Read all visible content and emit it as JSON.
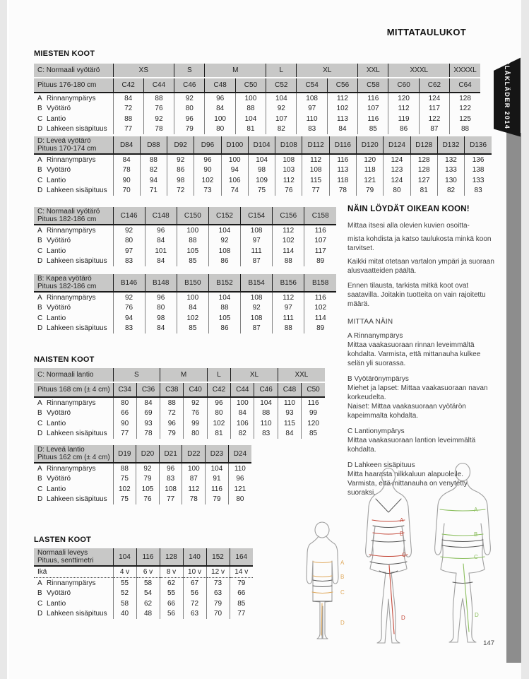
{
  "page": {
    "title": "MITTATAULUKOT",
    "side_tab": "BLÅKLÄDER 2014",
    "page_number": "147"
  },
  "sections": {
    "men_heading": "MIESTEN KOOT",
    "women_heading": "NAISTEN KOOT",
    "children_heading": "LASTEN KOOT"
  },
  "tables": [
    {
      "id": "men-c-normal",
      "label_lines": [
        "C: Normaali vyötärö",
        "Pituus 176-180 cm"
      ],
      "groups": [
        {
          "label": "XS",
          "span": 2
        },
        {
          "label": "S",
          "span": 1
        },
        {
          "label": "M",
          "span": 2
        },
        {
          "label": "L",
          "span": 1
        },
        {
          "label": "XL",
          "span": 2
        },
        {
          "label": "XXL",
          "span": 1
        },
        {
          "label": "XXXL",
          "span": 2
        },
        {
          "label": "XXXXL",
          "span": 1
        }
      ],
      "columns": [
        "C42",
        "C44",
        "C46",
        "C48",
        "C50",
        "C52",
        "C54",
        "C56",
        "C58",
        "C60",
        "C62",
        "C64"
      ],
      "rows": [
        {
          "key": "A",
          "label": "Rinnanympärys",
          "values": [
            84,
            88,
            92,
            96,
            100,
            104,
            108,
            112,
            116,
            120,
            124,
            128
          ]
        },
        {
          "key": "B",
          "label": "Vyötärö",
          "values": [
            72,
            76,
            80,
            84,
            88,
            92,
            97,
            102,
            107,
            112,
            117,
            122
          ]
        },
        {
          "key": "C",
          "label": "Lantio",
          "values": [
            88,
            92,
            96,
            100,
            104,
            107,
            110,
            113,
            116,
            119,
            122,
            125
          ]
        },
        {
          "key": "D",
          "label": "Lahkeen sisäpituus",
          "values": [
            77,
            78,
            79,
            80,
            81,
            82,
            83,
            84,
            85,
            86,
            87,
            88
          ]
        }
      ]
    },
    {
      "id": "men-d-wide",
      "label_lines": [
        "D: Leveä vyötärö",
        "Pituus 170-174 cm"
      ],
      "columns": [
        "D84",
        "D88",
        "D92",
        "D96",
        "D100",
        "D104",
        "D108",
        "D112",
        "D116",
        "D120",
        "D124",
        "D128",
        "D132",
        "D136"
      ],
      "rows": [
        {
          "key": "A",
          "label": "Rinnanympärys",
          "values": [
            84,
            88,
            92,
            96,
            100,
            104,
            108,
            112,
            116,
            120,
            124,
            128,
            132,
            136
          ]
        },
        {
          "key": "B",
          "label": "Vyötärö",
          "values": [
            78,
            82,
            86,
            90,
            94,
            98,
            103,
            108,
            113,
            118,
            123,
            128,
            133,
            138
          ]
        },
        {
          "key": "C",
          "label": "Lantio",
          "values": [
            90,
            94,
            98,
            102,
            106,
            109,
            112,
            115,
            118,
            121,
            124,
            127,
            130,
            133
          ]
        },
        {
          "key": "D",
          "label": "Lahkeen sisäpituus",
          "values": [
            70,
            71,
            72,
            73,
            74,
            75,
            76,
            77,
            78,
            79,
            80,
            81,
            82,
            83
          ]
        }
      ]
    },
    {
      "id": "men-c-tall",
      "label_lines": [
        "C: Normaali vyötärö",
        "Pituus 182-186 cm"
      ],
      "columns": [
        "C146",
        "C148",
        "C150",
        "C152",
        "C154",
        "C156",
        "C158"
      ],
      "rows": [
        {
          "key": "A",
          "label": "Rinnanympärys",
          "values": [
            92,
            96,
            100,
            104,
            108,
            112,
            116
          ]
        },
        {
          "key": "B",
          "label": "Vyötärö",
          "values": [
            80,
            84,
            88,
            92,
            97,
            102,
            107
          ]
        },
        {
          "key": "C",
          "label": "Lantio",
          "values": [
            97,
            101,
            105,
            108,
            111,
            114,
            117
          ]
        },
        {
          "key": "D",
          "label": "Lahkeen sisäpituus",
          "values": [
            83,
            84,
            85,
            86,
            87,
            88,
            89
          ]
        }
      ]
    },
    {
      "id": "men-b-slim",
      "label_lines": [
        "B: Kapea vyötärö",
        "Pituus 182-186 cm"
      ],
      "columns": [
        "B146",
        "B148",
        "B150",
        "B152",
        "B154",
        "B156",
        "B158"
      ],
      "rows": [
        {
          "key": "A",
          "label": "Rinnanympärys",
          "values": [
            92,
            96,
            100,
            104,
            108,
            112,
            116
          ]
        },
        {
          "key": "B",
          "label": "Vyötärö",
          "values": [
            76,
            80,
            84,
            88,
            92,
            97,
            102
          ]
        },
        {
          "key": "C",
          "label": "Lantio",
          "values": [
            94,
            98,
            102,
            105,
            108,
            111,
            114
          ]
        },
        {
          "key": "D",
          "label": "Lahkeen sisäpituus",
          "values": [
            83,
            84,
            85,
            86,
            87,
            88,
            89
          ]
        }
      ]
    },
    {
      "id": "women-c-normal",
      "label_lines": [
        "C: Normaali lantio",
        "Pituus 168 cm (± 4 cm)"
      ],
      "groups": [
        {
          "label": "S",
          "span": 2
        },
        {
          "label": "M",
          "span": 2
        },
        {
          "label": "L",
          "span": 1
        },
        {
          "label": "XL",
          "span": 2
        },
        {
          "label": "XXL",
          "span": 2
        }
      ],
      "columns": [
        "C34",
        "C36",
        "C38",
        "C40",
        "C42",
        "C44",
        "C46",
        "C48",
        "C50"
      ],
      "rows": [
        {
          "key": "A",
          "label": "Rinnanympärys",
          "values": [
            80,
            84,
            88,
            92,
            96,
            100,
            104,
            110,
            116
          ]
        },
        {
          "key": "B",
          "label": "Vyötärö",
          "values": [
            66,
            69,
            72,
            76,
            80,
            84,
            88,
            93,
            99
          ]
        },
        {
          "key": "C",
          "label": "Lantio",
          "values": [
            90,
            93,
            96,
            99,
            102,
            106,
            110,
            115,
            120
          ]
        },
        {
          "key": "D",
          "label": "Lahkeen sisäpituus",
          "values": [
            77,
            78,
            79,
            80,
            81,
            82,
            83,
            84,
            85
          ]
        }
      ]
    },
    {
      "id": "women-d-wide",
      "label_lines": [
        "D: Leveä lantio",
        "Pituus 162 cm (± 4 cm)"
      ],
      "columns": [
        "D19",
        "D20",
        "D21",
        "D22",
        "D23",
        "D24"
      ],
      "rows": [
        {
          "key": "A",
          "label": "Rinnanympärys",
          "values": [
            88,
            92,
            96,
            100,
            104,
            110
          ]
        },
        {
          "key": "B",
          "label": "Vyötärö",
          "values": [
            75,
            79,
            83,
            87,
            91,
            96
          ]
        },
        {
          "key": "C",
          "label": "Lantio",
          "values": [
            102,
            105,
            108,
            112,
            116,
            121
          ]
        },
        {
          "key": "D",
          "label": "Lahkeen sisäpituus",
          "values": [
            75,
            76,
            77,
            78,
            79,
            80
          ]
        }
      ]
    },
    {
      "id": "children",
      "label_lines": [
        "Normaali leveys",
        "Pituus, senttimetri"
      ],
      "columns": [
        "104",
        "116",
        "128",
        "140",
        "152",
        "164"
      ],
      "age_row": {
        "label": "Ikä",
        "values": [
          "4 v",
          "6 v",
          "8 v",
          "10 v",
          "12 v",
          "14 v"
        ]
      },
      "rows": [
        {
          "key": "A",
          "label": "Rinnanympärys",
          "values": [
            55,
            58,
            62,
            67,
            73,
            79
          ]
        },
        {
          "key": "B",
          "label": "Vyötärö",
          "values": [
            52,
            54,
            55,
            56,
            63,
            66
          ]
        },
        {
          "key": "C",
          "label": "Lantio",
          "values": [
            58,
            62,
            66,
            72,
            79,
            85
          ]
        },
        {
          "key": "D",
          "label": "Lahkeen sisäpituus",
          "values": [
            40,
            48,
            56,
            63,
            70,
            77
          ]
        }
      ]
    }
  ],
  "finder": {
    "heading": "NÄIN LÖYDÄT OIKEAN KOON!",
    "paragraphs": [
      "Mittaa itsesi alla olevien kuvien osoitta-",
      "mista kohdista ja katso taulukosta minkä koon tarvitset.",
      "Kaikki mitat otetaan vartalon ympäri ja suoraan alusvaatteiden päältä.",
      "Ennen tilausta, tarkista mitkä koot ovat saatavilla. Joitakin tuotteita on vain rajoitettu määrä."
    ],
    "measure_heading": "MITTAA NÄIN",
    "measures": [
      {
        "title": "A Rinnanympärys",
        "text": "Mittaa vaakasuoraan rinnan leveimmältä kohdalta. Varmista, että mittanauha kulkee selän yli suorassa."
      },
      {
        "title": "B Vyötärönympärys",
        "text": "Miehet ja lapset: Mittaa vaakasuoraan navan korkeudelta.\nNaiset: Mittaa vaakasuoraan vyötärön kapeimmalta kohdalta."
      },
      {
        "title": "C Lantionympärys",
        "text": "Mittaa vaakasuoraan lantion leveimmältä kohdalta."
      },
      {
        "title": "D Lahkeen sisäpituus",
        "text": "Mitta haarasta nilkkaluun alapuolelle. Varmista, että mittanauha on venytetty suoraksi."
      }
    ]
  },
  "figures": [
    {
      "name": "child",
      "color": "#dfa85b",
      "labels": [
        "A",
        "B",
        "C",
        "D"
      ]
    },
    {
      "name": "woman",
      "color": "#c4493a",
      "labels": [
        "A",
        "B",
        "C",
        "D"
      ]
    },
    {
      "name": "man",
      "color": "#8cbf5f",
      "labels": [
        "A",
        "B",
        "C",
        "D"
      ]
    }
  ],
  "colors": {
    "header_gray": "#c8c8c7",
    "tab_black": "#151515",
    "edge_gray": "#8d8d8d"
  }
}
